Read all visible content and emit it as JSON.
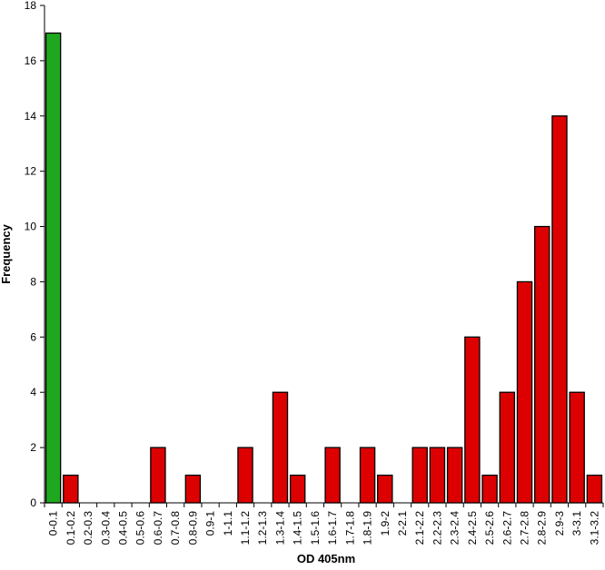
{
  "chart_data": {
    "type": "bar",
    "title": "",
    "xlabel": "OD 405nm",
    "ylabel": "Frequency",
    "ylim": [
      0,
      18
    ],
    "yticks": [
      0,
      2,
      4,
      6,
      8,
      10,
      12,
      14,
      16,
      18
    ],
    "grid": false,
    "legend": "none",
    "categories": [
      "0-0.1",
      "0.1-0.2",
      "0.2-0.3",
      "0.3-0.4",
      "0.4-0.5",
      "0.5-0.6",
      "0.6-0.7",
      "0.7-0.8",
      "0.8-0.9",
      "0.9-1",
      "1-1.1",
      "1.1-1.2",
      "1.2-1.3",
      "1.3-1.4",
      "1.4-1.5",
      "1.5-1.6",
      "1.6-1.7",
      "1.7-1.8",
      "1.8-1.9",
      "1.9-2",
      "2-2.1",
      "2.1-2.2",
      "2.2-2.3",
      "2.3-2.4",
      "2.4-2.5",
      "2.5-2.6",
      "2.6-2.7",
      "2.7-2.8",
      "2.8-2.9",
      "2.9-3",
      "3-3.1",
      "3.1-3.2"
    ],
    "values": [
      17,
      1,
      0,
      0,
      0,
      0,
      2,
      0,
      1,
      0,
      0,
      2,
      0,
      4,
      1,
      0,
      2,
      0,
      2,
      1,
      0,
      2,
      2,
      2,
      6,
      1,
      4,
      8,
      10,
      14,
      4,
      1
    ],
    "bar_colors": {
      "first": "#1fa81f",
      "rest": "#dd0000",
      "outline": "#000000"
    }
  }
}
